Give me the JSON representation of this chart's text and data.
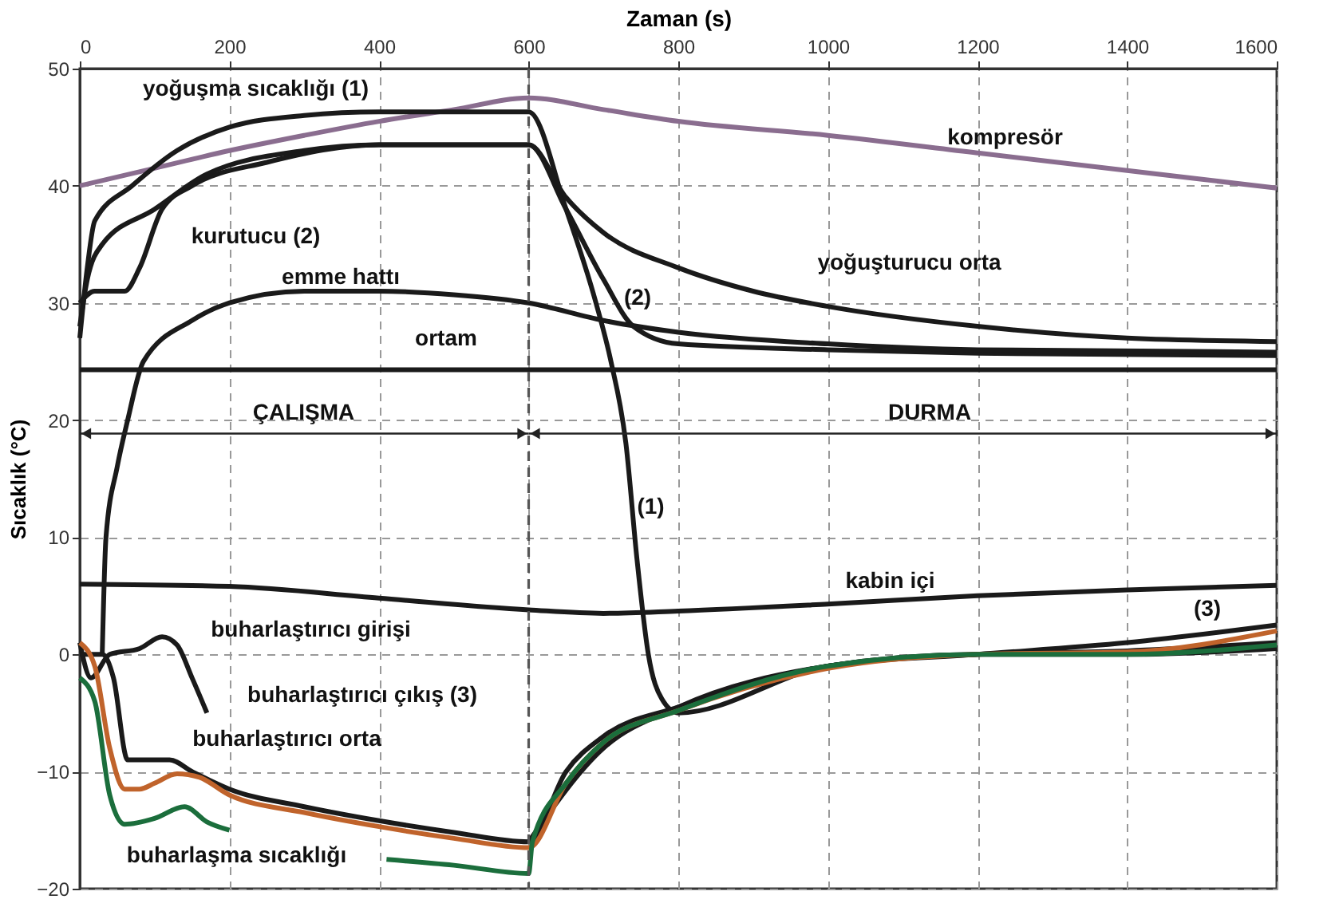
{
  "chart_data": {
    "type": "line",
    "xlabel": "Zaman (s)",
    "ylabel": "Sıcaklık (°C)",
    "xlim": [
      0,
      1600
    ],
    "xticks": [
      0,
      200,
      400,
      600,
      800,
      1000,
      1200,
      1400,
      1600
    ],
    "ylim": [
      -20,
      50
    ],
    "yticks": [
      -20,
      -10,
      0,
      10,
      20,
      30,
      40,
      50
    ],
    "grid": true,
    "marker": "none",
    "line_style": "solid",
    "series": [
      {
        "color": "#8a6d8f",
        "x": [
          0,
          100,
          200,
          300,
          400,
          500,
          600,
          700,
          800,
          1000,
          1200,
          1400,
          1600
        ],
        "values": [
          40,
          41.5,
          43,
          44.3,
          45.5,
          46.5,
          47.5,
          46.5,
          45.5,
          44.3,
          42.8,
          41.3,
          39.8
        ]
      },
      {
        "color": "#1a1a1a",
        "x": [
          0,
          10,
          20,
          70,
          130,
          200,
          300,
          400,
          500,
          600,
          650,
          690,
          710,
          730,
          745,
          760,
          778,
          800,
          1000,
          1200,
          1400,
          1600
        ],
        "values": [
          27,
          33,
          37,
          40,
          43,
          45,
          46,
          46.3,
          46.3,
          46.3,
          38,
          30,
          25,
          18,
          8,
          0,
          -3.8,
          -5,
          -1,
          0,
          0.3,
          1
        ]
      },
      {
        "color": "#1a1a1a",
        "x": [
          0,
          20,
          60,
          80,
          110,
          150,
          250,
          400,
          500,
          600,
          650,
          700,
          740,
          800,
          1000,
          1200,
          1600
        ],
        "values": [
          30,
          31,
          31,
          33,
          38,
          40,
          42,
          43.5,
          43.5,
          43.5,
          38,
          32,
          28,
          26.5,
          26,
          25.7,
          25.5
        ]
      },
      {
        "color": "#1a1a1a",
        "x": [
          0,
          10,
          30,
          100,
          170,
          300,
          400,
          500,
          600,
          650,
          700,
          800,
          900,
          1000,
          1200,
          1400,
          1600
        ],
        "values": [
          28,
          32,
          35,
          38,
          41,
          43,
          43.5,
          43.5,
          43.5,
          39,
          36,
          33,
          31,
          29.7,
          28,
          27,
          26.7
        ]
      },
      {
        "color": "#1a1a1a",
        "x": [
          30,
          35,
          50,
          64,
          85,
          150,
          200,
          300,
          400,
          500,
          600,
          700,
          800,
          1000,
          1200,
          1600
        ],
        "values": [
          0,
          10,
          16,
          20,
          25,
          28.5,
          30,
          31,
          31,
          30.7,
          30,
          28.5,
          27.5,
          26.5,
          26,
          25.8
        ]
      },
      {
        "color": "#1a1a1a",
        "x": [
          0,
          1600
        ],
        "values": [
          24.3,
          24.3
        ]
      },
      {
        "color": "#1a1a1a",
        "x": [
          0,
          200,
          400,
          600,
          700,
          800,
          1000,
          1200,
          1400,
          1600
        ],
        "values": [
          6,
          5.8,
          4.8,
          3.8,
          3.5,
          3.7,
          4.3,
          5,
          5.5,
          5.9
        ]
      },
      {
        "color": "#1a1a1a",
        "x": [
          0,
          15,
          40,
          80,
          110,
          130,
          150,
          170,
          300,
          600,
          700,
          800,
          1000,
          1200,
          1400,
          1600
        ],
        "values": [
          1,
          -2,
          0,
          0.5,
          1.5,
          0.8,
          -2,
          -5,
          null,
          -16,
          -8,
          -4.5,
          -1,
          0,
          1,
          2.5
        ]
      },
      {
        "color": "#1a1a1a",
        "x": [
          0,
          30,
          45,
          64,
          80,
          120,
          150,
          200,
          300,
          400,
          500,
          600,
          650,
          700,
          800,
          1000,
          1200,
          1400,
          1600
        ],
        "values": [
          0,
          0,
          -2,
          -9,
          -9,
          -9,
          -10,
          -11.5,
          -13,
          -14.2,
          -15.2,
          -16,
          -10,
          -7,
          -4.5,
          -1,
          0,
          0,
          0.5
        ]
      },
      {
        "color": "#c0632b",
        "x": [
          0,
          20,
          40,
          60,
          80,
          100,
          130,
          160,
          200,
          300,
          400,
          500,
          600,
          650,
          700,
          800,
          1000,
          1200,
          1400,
          1600
        ],
        "values": [
          1,
          -1,
          -8,
          -11.5,
          -11.5,
          -11,
          -10.2,
          -10.5,
          -12,
          -13.5,
          -14.7,
          -15.7,
          -16.5,
          -11,
          -7.5,
          -4.8,
          -1.2,
          0,
          0.2,
          2
        ]
      },
      {
        "color": "#1b6e3c",
        "x": [
          0,
          20,
          40,
          60,
          100,
          140,
          170,
          200,
          300,
          410,
          500,
          600,
          605,
          650,
          700,
          800,
          1000,
          1200,
          1400,
          1600
        ],
        "values": [
          -2,
          -4,
          -12,
          -14.5,
          -14,
          -13,
          -14.3,
          -15,
          null,
          -17.5,
          -18,
          -18.7,
          -16,
          -11,
          -7.5,
          -4.8,
          -1,
          0,
          0,
          0.8
        ]
      }
    ],
    "ref_lines": [
      {
        "axis": "x",
        "value": 600,
        "line_style": "dashed",
        "color": "#555555"
      }
    ],
    "annotations": [
      "yoğuşma sıcaklığı (1)",
      "kompresör",
      "kurutucu (2)",
      "yoğuşturucu orta",
      "emme hattı",
      "(2)",
      "ortam",
      "(1)",
      "kabin içi",
      "(3)",
      "buharlaştırıcı girişi",
      "buharlaştırıcı çıkış (3)",
      "buharlaştırıcı orta",
      "buharlaşma sıcaklığı",
      "ÇALIŞMA",
      "DURMA"
    ]
  }
}
